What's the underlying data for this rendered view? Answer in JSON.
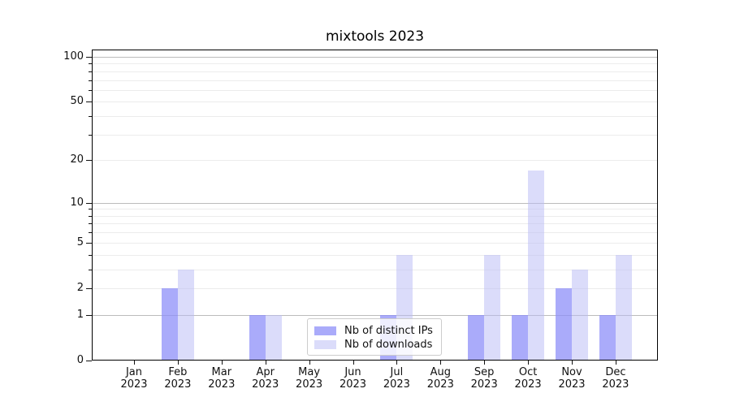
{
  "chart_data": {
    "type": "bar",
    "title": "mixtools 2023",
    "categories": [
      "Jan 2023",
      "Feb 2023",
      "Mar 2023",
      "Apr 2023",
      "May 2023",
      "Jun 2023",
      "Jul 2023",
      "Aug 2023",
      "Sep 2023",
      "Oct 2023",
      "Nov 2023",
      "Dec 2023"
    ],
    "x_tick_labels": [
      [
        "Jan",
        "2023"
      ],
      [
        "Feb",
        "2023"
      ],
      [
        "Mar",
        "2023"
      ],
      [
        "Apr",
        "2023"
      ],
      [
        "May",
        "2023"
      ],
      [
        "Jun",
        "2023"
      ],
      [
        "Jul",
        "2023"
      ],
      [
        "Aug",
        "2023"
      ],
      [
        "Sep",
        "2023"
      ],
      [
        "Oct",
        "2023"
      ],
      [
        "Nov",
        "2023"
      ],
      [
        "Dec",
        "2023"
      ]
    ],
    "series": [
      {
        "name": "Nb of distinct IPs",
        "color": "#8E8FF8",
        "opacity": 0.75,
        "values": [
          0,
          2,
          0,
          1,
          0,
          0,
          1,
          0,
          1,
          1,
          2,
          1
        ]
      },
      {
        "name": "Nb of downloads",
        "color": "#B7B9F5",
        "opacity": 0.5,
        "values": [
          0,
          3,
          0,
          1,
          0,
          0,
          4,
          0,
          4,
          17,
          3,
          4
        ]
      }
    ],
    "yscale": "log1p",
    "ylim": [
      0,
      112
    ],
    "y_ticks": [
      0,
      1,
      2,
      5,
      10,
      20,
      50,
      100
    ],
    "y_major_gridlines": [
      1,
      10,
      100
    ],
    "y_minor_gridlines": [
      2,
      3,
      4,
      5,
      6,
      7,
      8,
      9,
      20,
      30,
      40,
      50,
      60,
      70,
      80,
      90
    ],
    "grid": true,
    "legend_position": "lower center"
  },
  "colors": {
    "background": "#ffffff",
    "spine": "#000000",
    "grid_major": "#bcbcbc",
    "grid_minor": "#ececec",
    "tick_color": "#111111",
    "legend_border": "#cccccc"
  }
}
